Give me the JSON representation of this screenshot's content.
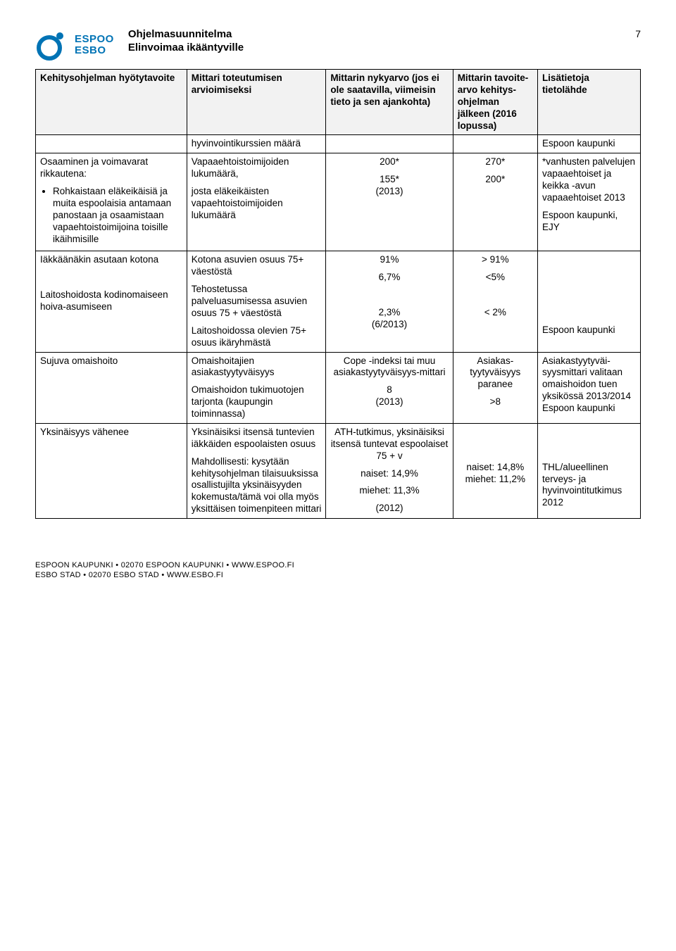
{
  "colors": {
    "brand": "#0073b5",
    "header_bg": "#f2f2f2",
    "border": "#000000",
    "text": "#000000",
    "page_bg": "#ffffff"
  },
  "page_number": "7",
  "logo": {
    "line1": "ESPOO",
    "line2": "ESBO"
  },
  "doc_title": {
    "line1": "Ohjelmasuunnitelma",
    "line2": "Elinvoimaa ikääntyville"
  },
  "columns": [
    {
      "key": "c1",
      "label": "Kehitysohjelman hyötytavoite",
      "width_pct": 25,
      "align": "left"
    },
    {
      "key": "c2",
      "label": "Mittari toteutumisen arvioimiseksi",
      "width_pct": 23,
      "align": "left"
    },
    {
      "key": "c3",
      "label": "Mittarin nykyarvo (jos ei ole saatavilla, viimeisin tieto ja sen ajankohta)",
      "width_pct": 21,
      "align": "center"
    },
    {
      "key": "c4",
      "label": "Mittarin tavoite-arvo kehitys-ohjelman jälkeen (2016 lopussa)",
      "width_pct": 14,
      "align": "center"
    },
    {
      "key": "c5",
      "label": "Lisätietoja tietolähde",
      "width_pct": 17,
      "align": "left"
    }
  ],
  "rows": [
    {
      "c1": {
        "align": "left",
        "parts": []
      },
      "c2": {
        "align": "left",
        "parts": [
          {
            "t": "para",
            "text": "hyvinvointikurssien määrä"
          }
        ]
      },
      "c3": {
        "align": "center",
        "parts": []
      },
      "c4": {
        "align": "center",
        "parts": []
      },
      "c5": {
        "align": "left",
        "parts": [
          {
            "t": "para",
            "text": "Espoon kaupunki"
          }
        ]
      }
    },
    {
      "c1": {
        "align": "left",
        "parts": [
          {
            "t": "para",
            "text": "Osaaminen ja voimavarat rikkautena:"
          },
          {
            "t": "bullets",
            "items": [
              "Rohkaistaan eläkeikäisiä ja muita espoolaisia antamaan panostaan ja osaamistaan vapaehtoistoimijoina toisille ikäihmisille"
            ]
          }
        ]
      },
      "c2": {
        "align": "left",
        "parts": [
          {
            "t": "para",
            "text": "Vapaaehtoistoimijoiden lukumäärä,"
          },
          {
            "t": "para",
            "text": "josta eläkeikäisten vapaehtoistoimijoiden lukumäärä"
          }
        ]
      },
      "c3": {
        "align": "center",
        "parts": [
          {
            "t": "para",
            "text": "200*"
          },
          {
            "t": "para",
            "text": "155*\n(2013)"
          }
        ]
      },
      "c4": {
        "align": "center",
        "parts": [
          {
            "t": "para",
            "text": "270*"
          },
          {
            "t": "para",
            "text": "200*"
          }
        ]
      },
      "c5": {
        "align": "left",
        "parts": [
          {
            "t": "para",
            "text": "*vanhusten palvelujen vapaaehtoiset ja keikka -avun vapaaehtoiset 2013"
          },
          {
            "t": "para",
            "text": "Espoon kaupunki, EJY"
          }
        ]
      }
    },
    {
      "c1": {
        "align": "left",
        "parts": [
          {
            "t": "para",
            "text": "Iäkkäänäkin asutaan kotona"
          },
          {
            "t": "para",
            "text": " "
          },
          {
            "t": "para",
            "text": "Laitoshoidosta kodinomaiseen hoiva-asumiseen"
          }
        ]
      },
      "c2": {
        "align": "left",
        "parts": [
          {
            "t": "para",
            "text": "Kotona asuvien osuus 75+ väestöstä"
          },
          {
            "t": "para",
            "text": "Tehostetussa palveluasumisessa asuvien osuus 75 + väestöstä"
          },
          {
            "t": "para",
            "text": "Laitoshoidossa olevien 75+ osuus ikäryhmästä"
          }
        ]
      },
      "c3": {
        "align": "center",
        "parts": [
          {
            "t": "para",
            "text": "91%"
          },
          {
            "t": "para",
            "text": "6,7%"
          },
          {
            "t": "para",
            "text": " "
          },
          {
            "t": "para",
            "text": "2,3%\n(6/2013)"
          }
        ]
      },
      "c4": {
        "align": "center",
        "parts": [
          {
            "t": "para",
            "text": "> 91%"
          },
          {
            "t": "para",
            "text": "<5%"
          },
          {
            "t": "para",
            "text": " "
          },
          {
            "t": "para",
            "text": "< 2%"
          }
        ]
      },
      "c5": {
        "align": "left",
        "parts": [
          {
            "t": "para",
            "text": " "
          },
          {
            "t": "para",
            "text": " "
          },
          {
            "t": "para",
            "text": " "
          },
          {
            "t": "para",
            "text": " "
          },
          {
            "t": "para",
            "text": "Espoon kaupunki"
          }
        ]
      }
    },
    {
      "c1": {
        "align": "left",
        "parts": [
          {
            "t": "para",
            "text": "Sujuva omaishoito"
          }
        ]
      },
      "c2": {
        "align": "left",
        "parts": [
          {
            "t": "para",
            "text": "Omaishoitajien asiakastyytyväisyys"
          },
          {
            "t": "para",
            "text": "Omaishoidon tukimuotojen tarjonta (kaupungin toiminnassa)"
          }
        ]
      },
      "c3": {
        "align": "center",
        "parts": [
          {
            "t": "para",
            "text": "Cope -indeksi tai muu asiakastyytyväisyys-mittari"
          },
          {
            "t": "para",
            "text": "8\n(2013)"
          }
        ]
      },
      "c4": {
        "align": "center",
        "parts": [
          {
            "t": "para",
            "text": "Asiakas-tyytyväisyys paranee"
          },
          {
            "t": "para",
            "text": ">8"
          }
        ]
      },
      "c5": {
        "align": "left",
        "parts": [
          {
            "t": "para",
            "text": "Asiakastyytyväi-syysmittari valitaan omaishoidon tuen yksikössä 2013/2014\nEspoon kaupunki"
          }
        ]
      }
    },
    {
      "c1": {
        "align": "left",
        "parts": [
          {
            "t": "para",
            "text": "Yksinäisyys vähenee"
          }
        ]
      },
      "c2": {
        "align": "left",
        "parts": [
          {
            "t": "para",
            "text": "Yksinäisiksi itsensä tuntevien iäkkäiden espoolaisten osuus"
          },
          {
            "t": "para",
            "text": "Mahdollisesti: kysytään kehitysohjelman tilaisuuksissa osallistujilta yksinäisyyden kokemusta/tämä voi olla myös yksittäisen toimenpiteen mittari"
          }
        ]
      },
      "c3": {
        "align": "center",
        "parts": [
          {
            "t": "para",
            "text": "ATH-tutkimus, yksinäisiksi itsensä tuntevat espoolaiset 75 + v"
          },
          {
            "t": "para",
            "text": "naiset: 14,9%"
          },
          {
            "t": "para",
            "text": "miehet: 11,3%"
          },
          {
            "t": "para",
            "text": "(2012)"
          }
        ]
      },
      "c4": {
        "align": "center",
        "parts": [
          {
            "t": "para",
            "text": " "
          },
          {
            "t": "para",
            "text": " "
          },
          {
            "t": "para",
            "text": "naiset: 14,8%\nmiehet: 11,2%"
          }
        ]
      },
      "c5": {
        "align": "left",
        "parts": [
          {
            "t": "para",
            "text": " "
          },
          {
            "t": "para",
            "text": " "
          },
          {
            "t": "para",
            "text": "THL/alueellinen terveys- ja hyvinvointitutkimus 2012"
          }
        ]
      }
    }
  ],
  "footer": {
    "line1": "ESPOON KAUPUNKI • 02070 ESPOON KAUPUNKI • WWW.ESPOO.FI",
    "line2": "ESBO STAD • 02070 ESBO STAD • WWW.ESBO.FI"
  }
}
